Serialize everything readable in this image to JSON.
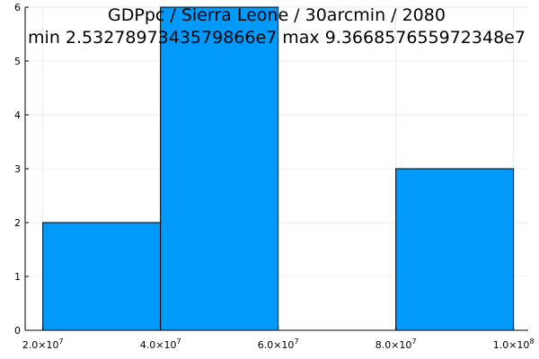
{
  "chart_data": {
    "type": "bar",
    "title": "GDPpc / Sierra Leone / 30arcmin / 2080",
    "subtitle": "min 2.5327897343579866e7  max 9.366857655972348e7",
    "xlabel": "",
    "ylabel": "",
    "xlim": [
      17000000,
      102500000
    ],
    "ylim": [
      0,
      6
    ],
    "grid": true,
    "legend": "none",
    "bar_color": "#009AFA",
    "bins": [
      {
        "x0": 20000000,
        "x1": 40000000,
        "count": 2
      },
      {
        "x0": 40000000,
        "x1": 60000000,
        "count": 6
      },
      {
        "x0": 60000000,
        "x1": 80000000,
        "count": 0
      },
      {
        "x0": 80000000,
        "x1": 100000000,
        "count": 3
      }
    ],
    "x_ticks": [
      {
        "value": 20000000,
        "mantissa": "2.0",
        "exp": "7"
      },
      {
        "value": 40000000,
        "mantissa": "4.0",
        "exp": "7"
      },
      {
        "value": 60000000,
        "mantissa": "6.0",
        "exp": "7"
      },
      {
        "value": 80000000,
        "mantissa": "8.0",
        "exp": "7"
      },
      {
        "value": 100000000,
        "mantissa": "1.0",
        "exp": "8"
      }
    ],
    "y_ticks": [
      {
        "value": 0,
        "label": "0"
      },
      {
        "value": 1,
        "label": "1"
      },
      {
        "value": 2,
        "label": "2"
      },
      {
        "value": 3,
        "label": "3"
      },
      {
        "value": 4,
        "label": "4"
      },
      {
        "value": 5,
        "label": "5"
      },
      {
        "value": 6,
        "label": "6"
      }
    ]
  }
}
